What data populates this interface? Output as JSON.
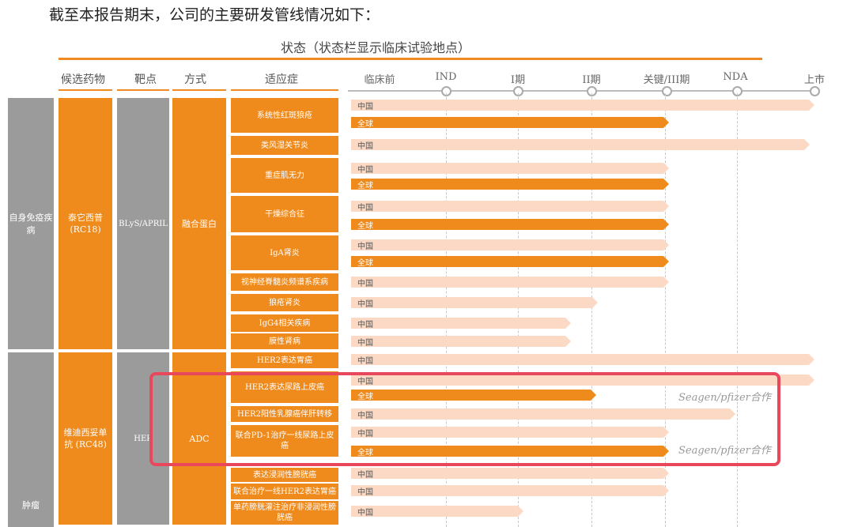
{
  "intro": "截至本报告期末，公司的主要研发管线情况如下：",
  "status_title": "状态（状态栏显示临床试验地点）",
  "headers": {
    "drug": "候选药物",
    "target": "靶点",
    "mode": "方式",
    "indication": "适应症"
  },
  "stages": [
    "临床前",
    "IND",
    "I期",
    "II期",
    "关键/III期",
    "NDA",
    "上市"
  ],
  "categories": {
    "autoimmune": "自身免疫疾病",
    "tumor": "肿瘤"
  },
  "drugs": {
    "rc18": {
      "name": "泰它西普\n(RC18)",
      "target": "BLyS/APRIL",
      "mode": "融合蛋白"
    },
    "rc48": {
      "name": "维迪西妥单抗 (RC48)",
      "target": "HER",
      "mode": "ADC"
    }
  },
  "indications": [
    "系统性红斑狼疮",
    "类风湿关节炎",
    "重症肌无力",
    "干燥综合征",
    "IgA肾炎",
    "视神经脊髓炎频谱系疾病",
    "狼疮肾炎",
    "IgG4相关疾病",
    "膜性肾病",
    "HER2表达胃癌",
    "HER2表达尿路上皮癌",
    "HER2阳性乳腺癌伴肝转移",
    "联合PD-1治疗一线尿路上皮癌",
    "表达浸润性膀胱癌",
    "联合治疗一线HER2表达胃癌",
    "单药膀胱灌注治疗非浸润性膀胱癌"
  ],
  "bar_labels": {
    "china": "中国",
    "global": "全球"
  },
  "partner": "Seagen/pfizer合作",
  "colors": {
    "accent": "#ef8a1c",
    "light_bar": "#fbd9c4",
    "grey": "#9b9b9b",
    "highlight": "#e8475c"
  }
}
